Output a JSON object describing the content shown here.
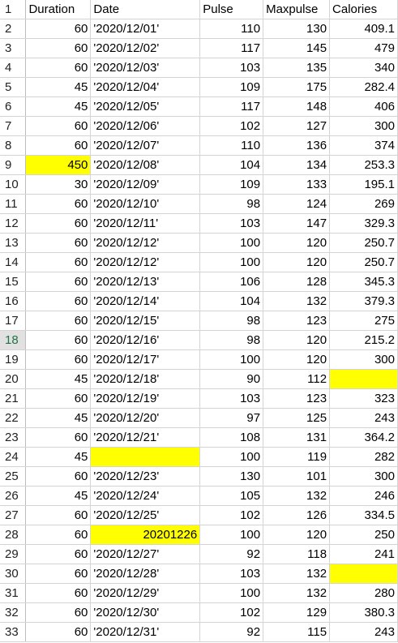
{
  "highlight_color": "#ffff00",
  "selected_row": 18,
  "header_row": {
    "row_number": "1",
    "cells": [
      "Duration",
      "Date",
      "Pulse",
      "Maxpulse",
      "Calories"
    ]
  },
  "rows": [
    {
      "row_number": "2",
      "cells": [
        "60",
        "'2020/12/01'",
        "110",
        "130",
        "409.1"
      ]
    },
    {
      "row_number": "3",
      "cells": [
        "60",
        "'2020/12/02'",
        "117",
        "145",
        "479"
      ]
    },
    {
      "row_number": "4",
      "cells": [
        "60",
        "'2020/12/03'",
        "103",
        "135",
        "340"
      ]
    },
    {
      "row_number": "5",
      "cells": [
        "45",
        "'2020/12/04'",
        "109",
        "175",
        "282.4"
      ]
    },
    {
      "row_number": "6",
      "cells": [
        "45",
        "'2020/12/05'",
        "117",
        "148",
        "406"
      ]
    },
    {
      "row_number": "7",
      "cells": [
        "60",
        "'2020/12/06'",
        "102",
        "127",
        "300"
      ]
    },
    {
      "row_number": "8",
      "cells": [
        "60",
        "'2020/12/07'",
        "110",
        "136",
        "374"
      ]
    },
    {
      "row_number": "9",
      "cells": [
        "450",
        "'2020/12/08'",
        "104",
        "134",
        "253.3"
      ],
      "highlight": [
        0
      ]
    },
    {
      "row_number": "10",
      "cells": [
        "30",
        "'2020/12/09'",
        "109",
        "133",
        "195.1"
      ]
    },
    {
      "row_number": "11",
      "cells": [
        "60",
        "'2020/12/10'",
        "98",
        "124",
        "269"
      ]
    },
    {
      "row_number": "12",
      "cells": [
        "60",
        "'2020/12/11'",
        "103",
        "147",
        "329.3"
      ]
    },
    {
      "row_number": "13",
      "cells": [
        "60",
        "'2020/12/12'",
        "100",
        "120",
        "250.7"
      ]
    },
    {
      "row_number": "14",
      "cells": [
        "60",
        "'2020/12/12'",
        "100",
        "120",
        "250.7"
      ]
    },
    {
      "row_number": "15",
      "cells": [
        "60",
        "'2020/12/13'",
        "106",
        "128",
        "345.3"
      ]
    },
    {
      "row_number": "16",
      "cells": [
        "60",
        "'2020/12/14'",
        "104",
        "132",
        "379.3"
      ]
    },
    {
      "row_number": "17",
      "cells": [
        "60",
        "'2020/12/15'",
        "98",
        "123",
        "275"
      ]
    },
    {
      "row_number": "18",
      "cells": [
        "60",
        "'2020/12/16'",
        "98",
        "120",
        "215.2"
      ]
    },
    {
      "row_number": "19",
      "cells": [
        "60",
        "'2020/12/17'",
        "100",
        "120",
        "300"
      ]
    },
    {
      "row_number": "20",
      "cells": [
        "45",
        "'2020/12/18'",
        "90",
        "112",
        ""
      ],
      "highlight": [
        4
      ]
    },
    {
      "row_number": "21",
      "cells": [
        "60",
        "'2020/12/19'",
        "103",
        "123",
        "323"
      ]
    },
    {
      "row_number": "22",
      "cells": [
        "45",
        "'2020/12/20'",
        "97",
        "125",
        "243"
      ]
    },
    {
      "row_number": "23",
      "cells": [
        "60",
        "'2020/12/21'",
        "108",
        "131",
        "364.2"
      ]
    },
    {
      "row_number": "24",
      "cells": [
        "45",
        "",
        "100",
        "119",
        "282"
      ],
      "highlight": [
        1
      ]
    },
    {
      "row_number": "25",
      "cells": [
        "60",
        "'2020/12/23'",
        "130",
        "101",
        "300"
      ]
    },
    {
      "row_number": "26",
      "cells": [
        "45",
        "'2020/12/24'",
        "105",
        "132",
        "246"
      ]
    },
    {
      "row_number": "27",
      "cells": [
        "60",
        "'2020/12/25'",
        "102",
        "126",
        "334.5"
      ]
    },
    {
      "row_number": "28",
      "cells": [
        "60",
        "20201226",
        "100",
        "120",
        "250"
      ],
      "highlight": [
        1
      ],
      "right_aligned_date": true
    },
    {
      "row_number": "29",
      "cells": [
        "60",
        "'2020/12/27'",
        "92",
        "118",
        "241"
      ]
    },
    {
      "row_number": "30",
      "cells": [
        "60",
        "'2020/12/28'",
        "103",
        "132",
        ""
      ],
      "highlight": [
        4
      ]
    },
    {
      "row_number": "31",
      "cells": [
        "60",
        "'2020/12/29'",
        "100",
        "132",
        "280"
      ]
    },
    {
      "row_number": "32",
      "cells": [
        "60",
        "'2020/12/30'",
        "102",
        "129",
        "380.3"
      ]
    },
    {
      "row_number": "33",
      "cells": [
        "60",
        "'2020/12/31'",
        "92",
        "115",
        "243"
      ]
    }
  ]
}
